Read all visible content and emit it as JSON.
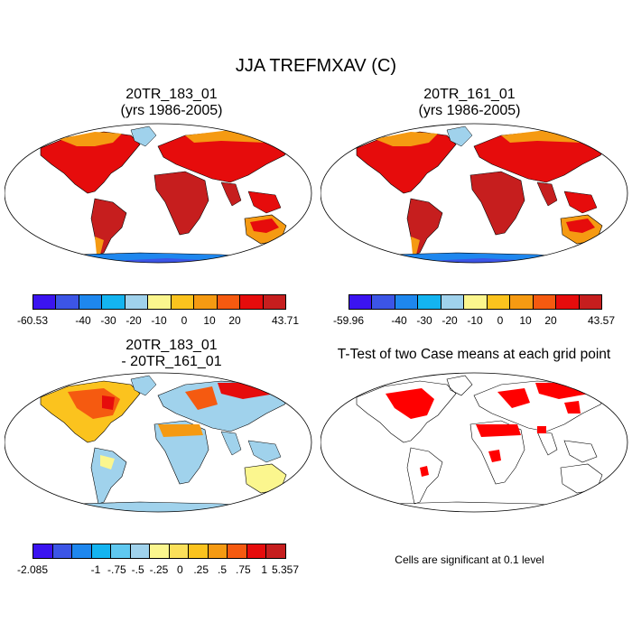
{
  "title": "JJA TREFMXAV (C)",
  "panels": [
    {
      "id": "p1",
      "title_line1": "20TR_183_01",
      "title_line2": "(yrs 1986-2005)",
      "colorbar": {
        "colors": [
          "#3b14f0",
          "#3c55e6",
          "#1e87ee",
          "#14b4f0",
          "#a0d2ec",
          "#fbf68e",
          "#fbc31e",
          "#f59a12",
          "#f55a10",
          "#e60c0c",
          "#c61e1e"
        ],
        "labels": [
          "-60.53",
          "-40",
          "-30",
          "-20",
          "-10",
          "0",
          "10",
          "20",
          "43.71"
        ]
      }
    },
    {
      "id": "p2",
      "title_line1": "20TR_161_01",
      "title_line2": "(yrs 1986-2005)",
      "colorbar": {
        "colors": [
          "#3b14f0",
          "#3c55e6",
          "#1e87ee",
          "#14b4f0",
          "#a0d2ec",
          "#fbf68e",
          "#fbc31e",
          "#f59a12",
          "#f55a10",
          "#e60c0c",
          "#c61e1e"
        ],
        "labels": [
          "-59.96",
          "-40",
          "-30",
          "-20",
          "-10",
          "0",
          "10",
          "20",
          "43.57"
        ]
      }
    },
    {
      "id": "p3",
      "title_line1": "20TR_183_01",
      "title_line2": "- 20TR_161_01",
      "colorbar": {
        "colors": [
          "#3b14f0",
          "#3c55e6",
          "#1e87ee",
          "#14b4f0",
          "#5fc8f0",
          "#a0d2ec",
          "#fbf68e",
          "#fbe05a",
          "#fbc31e",
          "#f59a12",
          "#f55a10",
          "#e60c0c",
          "#c61e1e"
        ],
        "labels": [
          "-2.085",
          "-1",
          "-.75",
          "-.5",
          "-.25",
          "0",
          ".25",
          ".5",
          ".75",
          "1",
          "5.357"
        ]
      }
    },
    {
      "id": "p4",
      "title_line1": "T-Test of two Case means at each grid point",
      "note": "Cells are significant at 0.1 level"
    }
  ],
  "colors": {
    "ocean": "#ffffff",
    "warm_land": "#e60c0c",
    "hot_land": "#c61e1e",
    "mid_land": "#f59a12",
    "cool_land": "#fbc31e",
    "antarctica": "#3c55e6",
    "significance": "#ff0000"
  }
}
